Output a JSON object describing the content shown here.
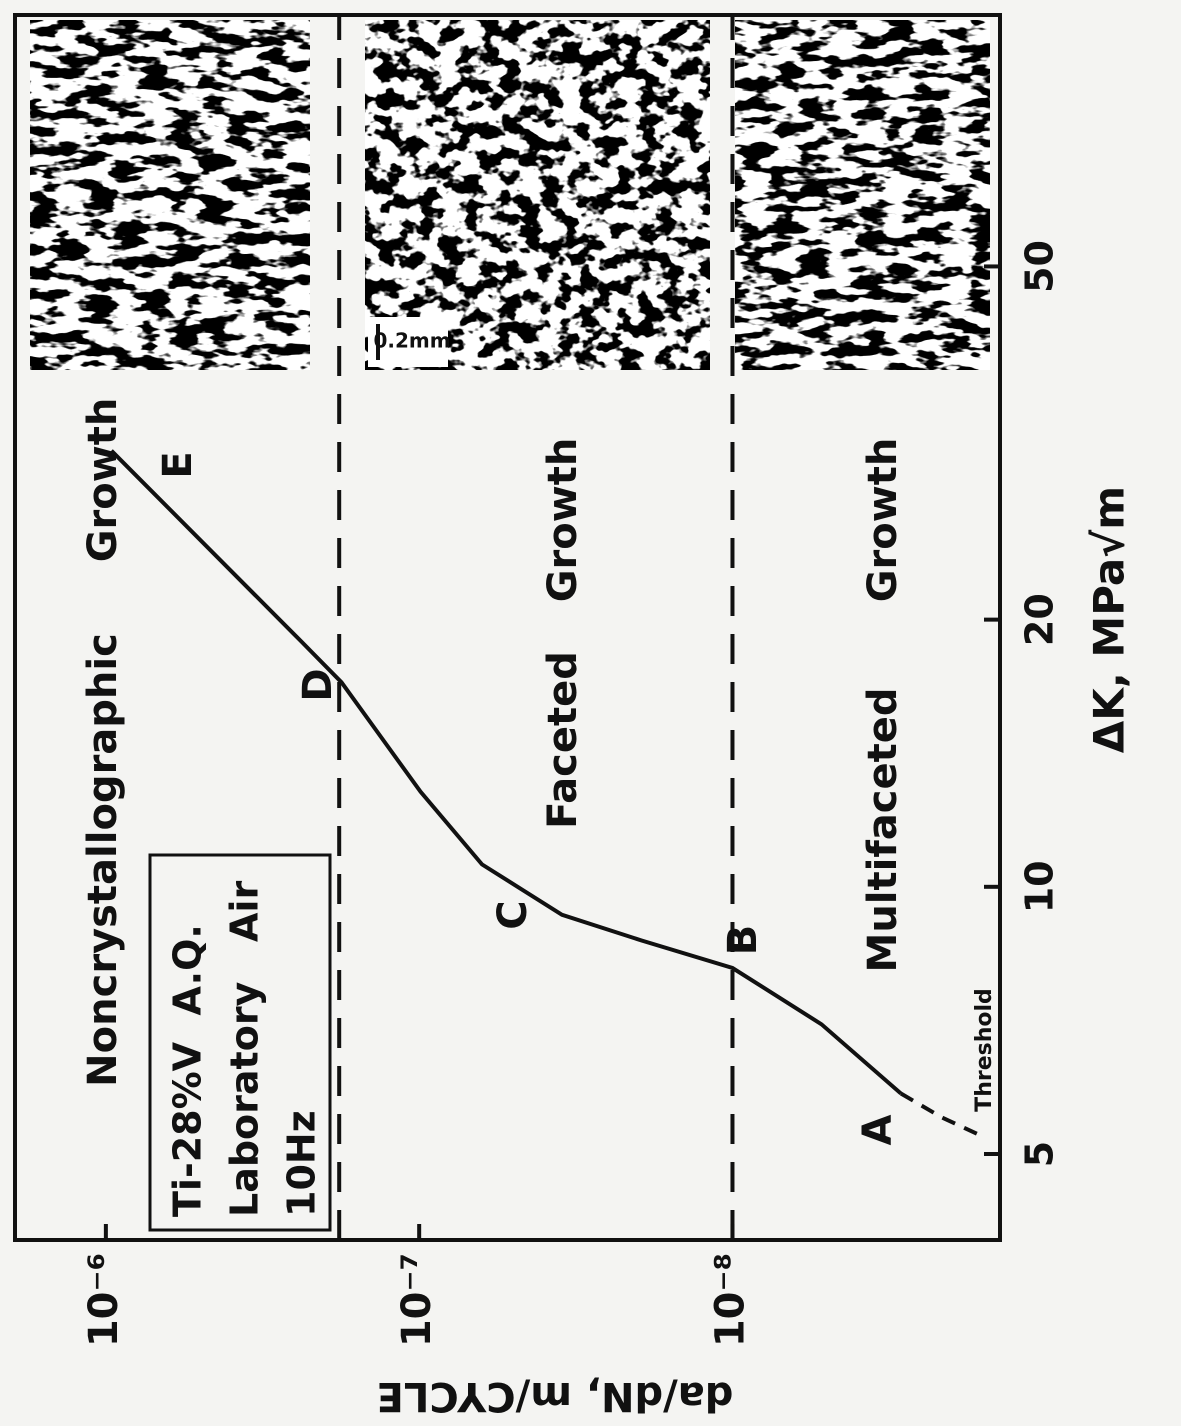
{
  "chart_data": {
    "type": "line",
    "x_label": "ΔK, MPa√m",
    "y_label": "da/dN, m/CYCLE",
    "xscale": "log",
    "yscale": "log",
    "xlim": [
      4,
      96
    ],
    "ylim": [
      1.4e-09,
      1.95e-06
    ],
    "xticks": [
      5,
      10,
      20,
      50
    ],
    "yticks": [
      {
        "value": 1e-06,
        "label": "10⁻⁶"
      },
      {
        "value": 1e-07,
        "label": "10⁻⁷"
      },
      {
        "value": 1e-08,
        "label": "10⁻⁸"
      }
    ],
    "hlines": [
      1.8e-07,
      1e-08
    ],
    "series": [
      {
        "color": "#111111",
        "style": "solid",
        "x": [
          31.0,
          18.9,
          17.0,
          12.8,
          10.6,
          9.3,
          8.7,
          8.1,
          7.0,
          5.85
        ],
        "values": [
          9.6e-07,
          2.38e-07,
          1.77e-07,
          9.9e-08,
          6.3e-08,
          3.5e-08,
          1.95e-08,
          1e-08,
          5.2e-09,
          2.9e-09
        ]
      },
      {
        "color": "#111111",
        "style": "dashed",
        "x": [
          5.85,
          5.5,
          5.27
        ],
        "values": [
          2.9e-09,
          2.15e-09,
          1.66e-09
        ]
      }
    ],
    "regions": [
      [
        "Noncrystallographic",
        "Growth"
      ],
      [
        "Faceted",
        "Growth"
      ],
      [
        "Multifaceted",
        "Growth"
      ]
    ],
    "points": [
      "A",
      "B",
      "C",
      "D",
      "E"
    ],
    "threshold_label": "Threshold",
    "legend_box": [
      "Ti-28%V  A.Q.",
      "Laboratory   Air",
      "10Hz"
    ],
    "scale_bar": "0.2mm"
  }
}
